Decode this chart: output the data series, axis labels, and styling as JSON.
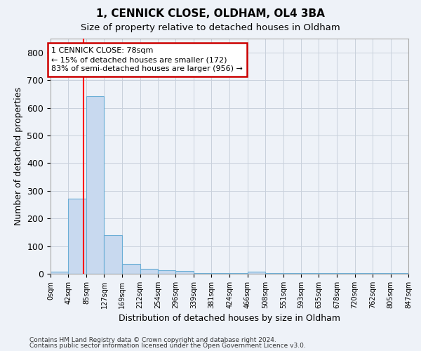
{
  "title": "1, CENNICK CLOSE, OLDHAM, OL4 3BA",
  "subtitle": "Size of property relative to detached houses in Oldham",
  "xlabel": "Distribution of detached houses by size in Oldham",
  "ylabel": "Number of detached properties",
  "footnote1": "Contains HM Land Registry data © Crown copyright and database right 2024.",
  "footnote2": "Contains public sector information licensed under the Open Government Licence v3.0.",
  "bar_color": "#c8d9ef",
  "bar_edge_color": "#6baed6",
  "grid_color": "#c8d0dc",
  "red_line_x": 78,
  "annotation_line1": "1 CENNICK CLOSE: 78sqm",
  "annotation_line2": "← 15% of detached houses are smaller (172)",
  "annotation_line3": "83% of semi-detached houses are larger (956) →",
  "annotation_box_color": "#ffffff",
  "annotation_box_edge": "#cc0000",
  "bin_edges": [
    0,
    42,
    85,
    127,
    169,
    212,
    254,
    296,
    339,
    381,
    424,
    466,
    508,
    551,
    593,
    635,
    678,
    720,
    762,
    805,
    847
  ],
  "bar_heights": [
    7,
    272,
    643,
    140,
    35,
    18,
    12,
    10,
    3,
    3,
    3,
    8,
    3,
    3,
    3,
    3,
    3,
    3,
    3,
    3
  ],
  "ylim": [
    0,
    850
  ],
  "yticks": [
    0,
    100,
    200,
    300,
    400,
    500,
    600,
    700,
    800
  ],
  "background_color": "#eef2f8"
}
